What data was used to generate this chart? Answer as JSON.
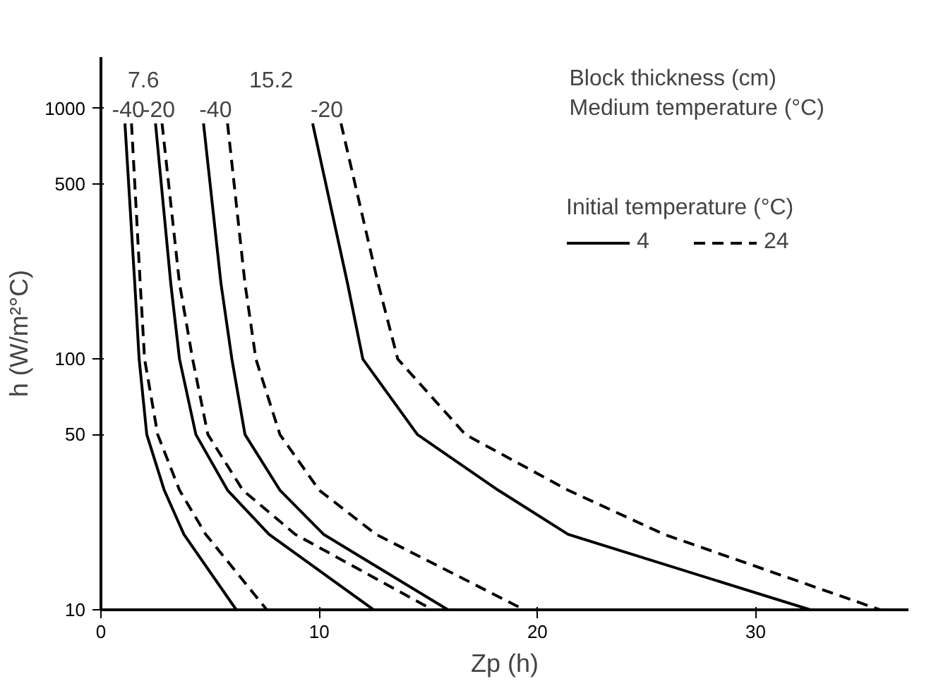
{
  "chart_data": {
    "type": "line",
    "xlabel": "Zp (h)",
    "ylabel": "h (W/m²°C)",
    "legend_title": "Initial temperature (°C)",
    "log": "y",
    "xlim": [
      0,
      37
    ],
    "ylim": [
      10,
      1600
    ],
    "xticks": [
      0,
      10,
      20,
      30
    ],
    "yticks": [
      10,
      50,
      100,
      500,
      1000
    ],
    "grid": false,
    "legend": "top right",
    "marker": "none",
    "annotations": [
      "Block thickness (cm)",
      "Medium temperature (°C)",
      "7.6",
      "15.2",
      "-40",
      "-20",
      "-40",
      "-20"
    ],
    "series": [
      {
        "name": "4",
        "color": "#000000",
        "line_style": "solid",
        "x": [
          1.1,
          1.55,
          1.75,
          2.1,
          2.9,
          3.8,
          6.2
        ],
        "values": [
          870,
          200,
          100,
          50,
          30,
          20,
          10
        ]
      },
      {
        "name": "24",
        "color": "#000000",
        "line_style": "dashed",
        "x": [
          1.4,
          1.8,
          2.0,
          2.6,
          3.6,
          4.8,
          7.6
        ],
        "values": [
          870,
          200,
          100,
          50,
          30,
          20,
          10
        ]
      },
      {
        "color": "#000000",
        "line_style": "solid",
        "x": [
          2.5,
          3.2,
          3.6,
          4.35,
          5.8,
          7.7,
          12.5
        ],
        "values": [
          870,
          200,
          100,
          50,
          30,
          20,
          10
        ]
      },
      {
        "color": "#000000",
        "line_style": "dashed",
        "x": [
          2.8,
          3.6,
          4.2,
          4.9,
          6.5,
          8.9,
          15.2
        ],
        "values": [
          870,
          200,
          100,
          50,
          30,
          20,
          10
        ]
      },
      {
        "color": "#000000",
        "line_style": "solid",
        "x": [
          4.7,
          5.5,
          6.0,
          6.6,
          8.2,
          10.2,
          15.9
        ],
        "values": [
          870,
          200,
          100,
          50,
          30,
          20,
          10
        ]
      },
      {
        "color": "#000000",
        "line_style": "dashed",
        "x": [
          5.8,
          6.6,
          7.1,
          8.2,
          10.0,
          12.6,
          19.4
        ],
        "values": [
          870,
          200,
          100,
          50,
          30,
          20,
          10
        ]
      },
      {
        "color": "#000000",
        "line_style": "solid",
        "x": [
          9.7,
          11.3,
          12.0,
          14.5,
          18.2,
          21.4,
          32.5
        ],
        "values": [
          870,
          200,
          100,
          50,
          30,
          20,
          10
        ]
      },
      {
        "color": "#000000",
        "line_style": "dashed",
        "x": [
          11.0,
          12.7,
          13.6,
          16.7,
          21.4,
          25.8,
          35.7
        ],
        "values": [
          870,
          200,
          100,
          50,
          30,
          20,
          10
        ]
      }
    ]
  }
}
